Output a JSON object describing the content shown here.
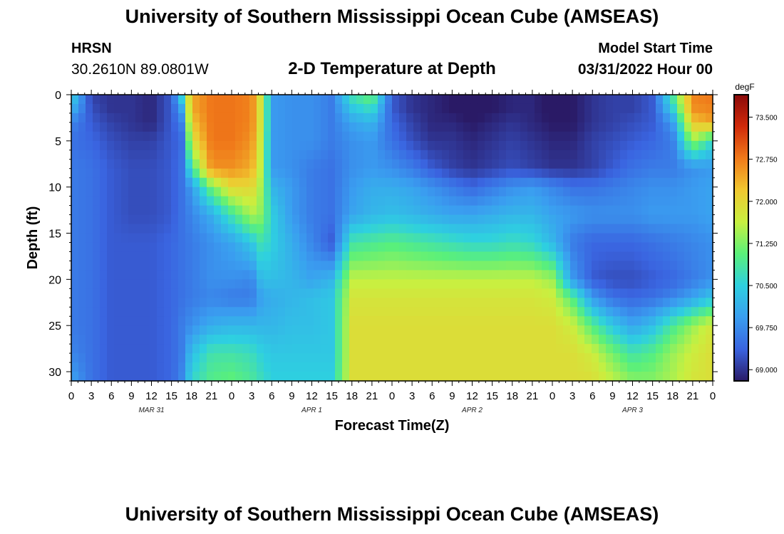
{
  "header": {
    "title": "University of Southern Mississippi Ocean Cube (AMSEAS)",
    "station": "HRSN",
    "coords": "30.2610N  89.0801W",
    "subtitle": "2-D Temperature at Depth",
    "model_start_label": "Model Start Time",
    "model_start_value": "03/31/2022 Hour 00"
  },
  "footer": {
    "title": "University of Southern Mississippi Ocean Cube (AMSEAS)"
  },
  "chart_data": {
    "type": "heatmap",
    "xlabel": "Forecast Time(Z)",
    "ylabel": "Depth (ft)",
    "x_unit": "hours",
    "xlim": [
      0,
      96
    ],
    "ylim": [
      0,
      31
    ],
    "x_tick_labels": [
      "0",
      "3",
      "6",
      "9",
      "12",
      "15",
      "18",
      "21",
      "0",
      "3",
      "6",
      "9",
      "12",
      "15",
      "18",
      "21",
      "0",
      "3",
      "6",
      "9",
      "12",
      "15",
      "18",
      "21",
      "0",
      "3",
      "6",
      "9",
      "12",
      "15",
      "18",
      "21",
      "0"
    ],
    "date_labels": [
      {
        "hour": 12,
        "text": "MAR 31"
      },
      {
        "hour": 36,
        "text": "APR 1"
      },
      {
        "hour": 60,
        "text": "APR 2"
      },
      {
        "hour": 84,
        "text": "APR 3"
      }
    ],
    "y_ticks": [
      0,
      5,
      10,
      15,
      20,
      25,
      30
    ],
    "colorbar": {
      "unit": "degF",
      "min": 68.8,
      "max": 73.9,
      "ticks": [
        "69.000",
        "69.750",
        "70.500",
        "71.250",
        "72.000",
        "72.750",
        "73.500"
      ],
      "colors": [
        "#2a1a66",
        "#3a64e0",
        "#3a9ef0",
        "#2ed0e0",
        "#5af07a",
        "#c8f040",
        "#f0c830",
        "#f07a1a",
        "#d02a0a",
        "#8a0a0a"
      ]
    },
    "depths": [
      0,
      1.5,
      3,
      5,
      8,
      10,
      13,
      16,
      20,
      22,
      25,
      28,
      31
    ],
    "times": [
      0,
      3,
      6,
      9,
      12,
      15,
      16.5,
      18,
      21,
      24,
      27,
      28.5,
      30,
      33,
      36,
      39,
      42,
      45,
      48,
      51,
      54,
      57,
      60,
      63,
      66,
      69,
      72,
      75,
      78,
      81,
      84,
      87,
      90,
      93,
      96
    ],
    "temperature_degF": [
      [
        70.6,
        69.1,
        69.0,
        69.0,
        68.9,
        69.3,
        70.6,
        72.4,
        72.8,
        72.8,
        72.7,
        71.7,
        69.9,
        69.8,
        69.8,
        69.6,
        70.8,
        71.2,
        69.3,
        69.0,
        68.9,
        68.8,
        68.7,
        68.8,
        68.9,
        68.9,
        68.7,
        68.8,
        69.0,
        69.1,
        69.1,
        69.3,
        70.9,
        72.7,
        72.8
      ],
      [
        70.2,
        69.2,
        69.0,
        69.0,
        68.9,
        69.3,
        70.0,
        72.4,
        72.8,
        72.8,
        72.7,
        71.7,
        69.9,
        69.8,
        69.8,
        69.6,
        70.4,
        70.7,
        69.3,
        69.0,
        68.9,
        68.8,
        68.7,
        68.8,
        68.9,
        68.9,
        68.7,
        68.8,
        69.0,
        69.1,
        69.1,
        69.3,
        70.5,
        72.6,
        72.7
      ],
      [
        69.7,
        69.3,
        69.1,
        69.0,
        68.9,
        69.3,
        69.6,
        72.2,
        72.8,
        72.8,
        72.7,
        71.7,
        69.9,
        69.8,
        69.8,
        69.6,
        70.0,
        70.2,
        69.4,
        69.1,
        68.9,
        68.9,
        68.8,
        68.9,
        69.0,
        68.9,
        68.8,
        68.8,
        69.0,
        69.1,
        69.2,
        69.3,
        69.9,
        72.2,
        72.5
      ],
      [
        69.5,
        69.4,
        69.2,
        69.1,
        69.1,
        69.3,
        69.4,
        71.8,
        72.8,
        72.8,
        72.6,
        71.6,
        69.9,
        69.8,
        69.8,
        69.6,
        69.8,
        69.9,
        69.5,
        69.2,
        69.0,
        69.0,
        68.9,
        69.0,
        69.1,
        69.0,
        68.9,
        68.9,
        69.1,
        69.2,
        69.3,
        69.4,
        69.6,
        71.4,
        70.6
      ],
      [
        69.6,
        69.5,
        69.3,
        69.2,
        69.2,
        69.3,
        69.5,
        70.8,
        72.6,
        72.6,
        72.4,
        71.5,
        69.9,
        69.8,
        69.6,
        69.5,
        69.8,
        69.9,
        69.8,
        69.6,
        69.3,
        69.1,
        69.0,
        69.1,
        69.2,
        69.1,
        69.0,
        69.0,
        69.1,
        69.3,
        69.5,
        69.6,
        69.6,
        69.8,
        69.9
      ],
      [
        69.6,
        69.5,
        69.3,
        69.2,
        69.2,
        69.3,
        69.5,
        69.9,
        71.2,
        72.0,
        72.0,
        71.4,
        70.2,
        69.9,
        69.6,
        69.5,
        69.9,
        70.1,
        70.1,
        70.0,
        69.8,
        69.6,
        69.4,
        69.6,
        69.8,
        69.9,
        69.7,
        69.5,
        69.5,
        69.6,
        69.7,
        69.8,
        69.8,
        69.9,
        70.0
      ],
      [
        69.6,
        69.5,
        69.3,
        69.2,
        69.2,
        69.3,
        69.5,
        69.7,
        70.1,
        70.8,
        71.5,
        71.3,
        70.5,
        69.9,
        69.6,
        69.5,
        70.0,
        70.2,
        70.3,
        70.2,
        70.1,
        70.0,
        70.0,
        70.1,
        70.2,
        70.2,
        70.0,
        69.9,
        69.8,
        69.8,
        69.8,
        69.9,
        69.9,
        69.9,
        70.0
      ],
      [
        69.6,
        69.5,
        69.3,
        69.3,
        69.3,
        69.4,
        69.5,
        69.6,
        69.8,
        70.0,
        70.4,
        70.8,
        70.5,
        70.1,
        69.7,
        69.3,
        70.8,
        70.9,
        71.0,
        70.9,
        70.8,
        70.7,
        70.6,
        70.6,
        70.7,
        70.6,
        70.2,
        69.6,
        69.4,
        69.4,
        69.4,
        69.5,
        69.6,
        69.7,
        69.8
      ],
      [
        69.6,
        69.5,
        69.3,
        69.3,
        69.3,
        69.4,
        69.5,
        69.6,
        69.8,
        69.8,
        69.7,
        70.3,
        70.3,
        70.2,
        70.0,
        70.2,
        71.6,
        71.6,
        71.6,
        71.6,
        71.6,
        71.6,
        71.6,
        71.6,
        71.6,
        71.6,
        71.4,
        69.9,
        69.3,
        69.2,
        69.2,
        69.3,
        69.4,
        69.6,
        69.8
      ],
      [
        69.6,
        69.5,
        69.3,
        69.3,
        69.3,
        69.4,
        69.5,
        69.6,
        69.7,
        69.6,
        69.6,
        70.0,
        70.1,
        70.2,
        70.3,
        70.4,
        71.8,
        71.8,
        71.8,
        71.8,
        71.8,
        71.8,
        71.8,
        71.8,
        71.8,
        71.8,
        71.7,
        71.0,
        69.9,
        69.5,
        69.4,
        69.5,
        69.7,
        70.0,
        70.4
      ],
      [
        69.6,
        69.5,
        69.3,
        69.3,
        69.3,
        69.4,
        69.6,
        69.8,
        70.1,
        70.2,
        70.2,
        70.2,
        70.2,
        70.3,
        70.3,
        70.4,
        71.9,
        71.9,
        71.9,
        71.9,
        71.9,
        71.9,
        71.9,
        71.9,
        71.9,
        71.9,
        71.9,
        71.7,
        71.0,
        70.4,
        70.0,
        70.3,
        70.9,
        71.4,
        71.8
      ],
      [
        69.7,
        69.5,
        69.3,
        69.3,
        69.3,
        69.4,
        69.6,
        70.3,
        70.8,
        70.8,
        70.7,
        70.5,
        70.4,
        70.4,
        70.4,
        70.4,
        71.9,
        71.9,
        71.9,
        71.9,
        71.9,
        71.9,
        71.9,
        71.9,
        71.9,
        71.9,
        71.9,
        71.9,
        71.7,
        71.2,
        70.8,
        71.0,
        71.4,
        71.7,
        71.9
      ],
      [
        70.0,
        69.5,
        69.3,
        69.3,
        69.3,
        69.4,
        69.7,
        70.6,
        71.0,
        71.1,
        70.9,
        70.7,
        70.5,
        70.5,
        70.5,
        70.5,
        71.9,
        71.9,
        71.9,
        71.9,
        71.9,
        71.9,
        71.9,
        71.9,
        71.9,
        71.9,
        71.9,
        71.9,
        71.9,
        71.6,
        71.3,
        71.3,
        71.5,
        71.8,
        71.9
      ]
    ]
  }
}
